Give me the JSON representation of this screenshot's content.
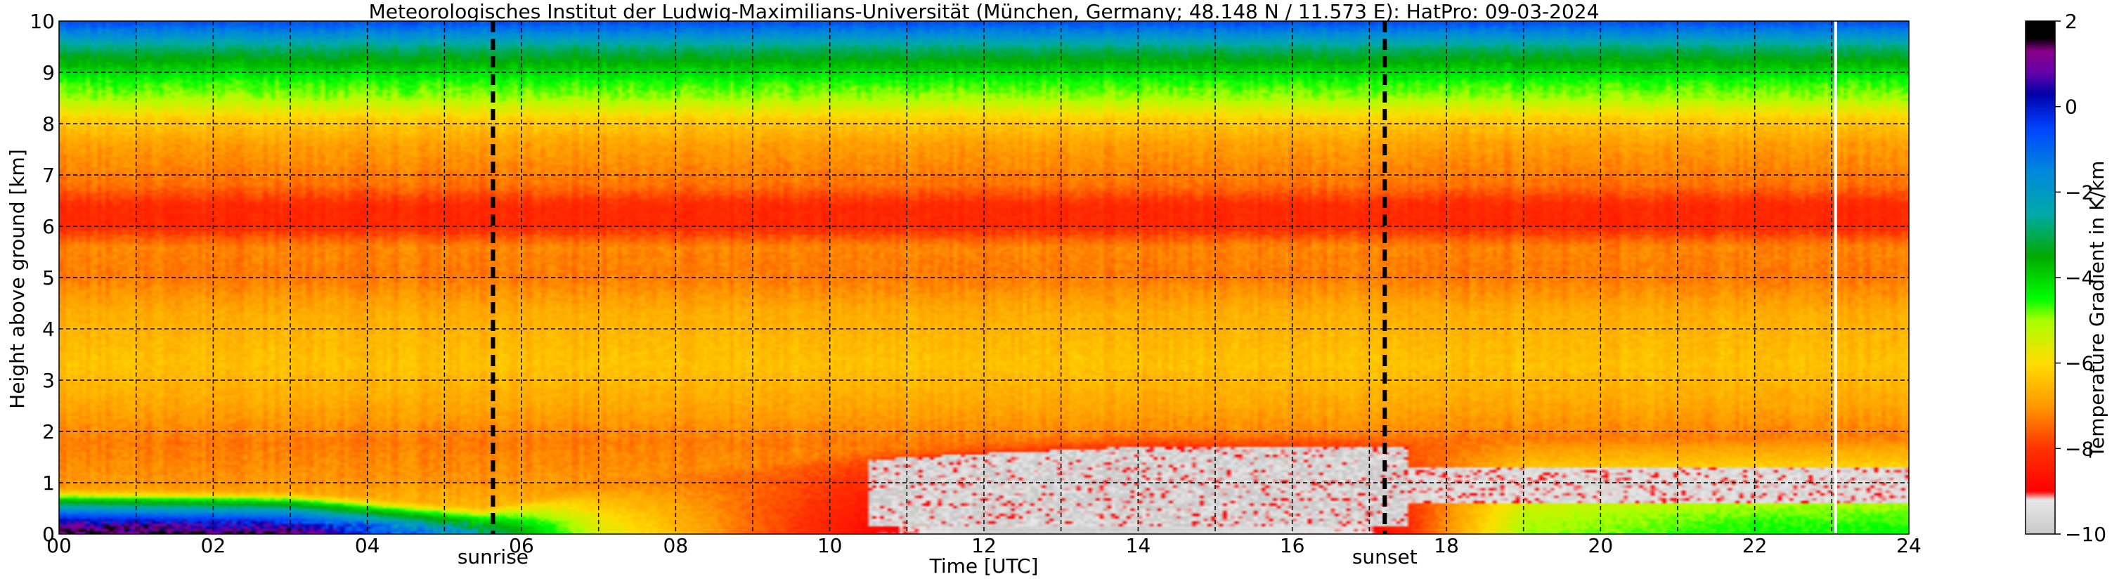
{
  "chart_data": {
    "type": "heatmap",
    "title": "Meteorologisches Institut der Ludwig-Maximilians-Universität (München, Germany; 48.148 N / 11.573 E):    HatPro: 09-03-2024",
    "xlabel": "Time [UTC]",
    "ylabel": "Height above ground [km]",
    "xlim": [
      0,
      24
    ],
    "ylim": [
      0,
      10
    ],
    "x_tick_labels": [
      "00",
      "02",
      "04",
      "06",
      "08",
      "10",
      "12",
      "14",
      "16",
      "18",
      "20",
      "22",
      "24"
    ],
    "y_tick_labels": [
      "0",
      "1",
      "2",
      "3",
      "4",
      "5",
      "6",
      "7",
      "8",
      "9",
      "10"
    ],
    "grid": true,
    "colorbar": {
      "label": "Temperature Gradient in K/km",
      "range": [
        -10,
        2
      ],
      "tick_labels": [
        "2",
        "0",
        "−2",
        "−4",
        "−6",
        "−8",
        "−10"
      ],
      "stops": [
        {
          "value": -10,
          "color": "#c8c8c8"
        },
        {
          "value": -9.2,
          "color": "#e8e8e8"
        },
        {
          "value": -9.0,
          "color": "#ff0000"
        },
        {
          "value": -8.0,
          "color": "#ff3300"
        },
        {
          "value": -7.0,
          "color": "#ff9900"
        },
        {
          "value": -6.0,
          "color": "#ffdd00"
        },
        {
          "value": -5.0,
          "color": "#aaff00"
        },
        {
          "value": -4.5,
          "color": "#00ff00"
        },
        {
          "value": -3.5,
          "color": "#00aa00"
        },
        {
          "value": -2.5,
          "color": "#00aaaa"
        },
        {
          "value": -1.5,
          "color": "#0088dd"
        },
        {
          "value": -0.5,
          "color": "#0044ff"
        },
        {
          "value": 0.3,
          "color": "#0000aa"
        },
        {
          "value": 0.8,
          "color": "#6600aa"
        },
        {
          "value": 1.3,
          "color": "#880088"
        },
        {
          "value": 1.6,
          "color": "#000000"
        },
        {
          "value": 2,
          "color": "#000000"
        }
      ]
    },
    "profile_base": [
      {
        "h": 0.0,
        "v": -6.0
      },
      {
        "h": 1.0,
        "v": -7.0
      },
      {
        "h": 1.8,
        "v": -7.3
      },
      {
        "h": 2.5,
        "v": -6.8
      },
      {
        "h": 3.3,
        "v": -6.4
      },
      {
        "h": 4.3,
        "v": -6.7
      },
      {
        "h": 5.0,
        "v": -7.3
      },
      {
        "h": 5.6,
        "v": -7.2
      },
      {
        "h": 6.0,
        "v": -8.2
      },
      {
        "h": 6.4,
        "v": -8.2
      },
      {
        "h": 6.8,
        "v": -7.4
      },
      {
        "h": 7.6,
        "v": -6.9
      },
      {
        "h": 8.1,
        "v": -6.2
      },
      {
        "h": 8.5,
        "v": -5.0
      },
      {
        "h": 8.8,
        "v": -4.6
      },
      {
        "h": 9.2,
        "v": -3.6
      },
      {
        "h": 9.5,
        "v": -2.8
      },
      {
        "h": 9.75,
        "v": -1.6
      },
      {
        "h": 10.0,
        "v": -0.6
      }
    ],
    "boundary_layer": [
      {
        "t": 0,
        "top": 0.95,
        "surface": 1.7
      },
      {
        "t": 3,
        "top": 0.9,
        "surface": 1.2
      },
      {
        "t": 5.5,
        "top": 0.6,
        "surface": -2.5
      },
      {
        "t": 7,
        "top": 1.1,
        "surface": -5.5
      },
      {
        "t": 9,
        "top": 1.4,
        "surface": -7.5
      },
      {
        "t": 10.5,
        "top": 1.7,
        "surface": -8.8
      },
      {
        "t": 12,
        "top": 1.85,
        "surface": -9.8
      },
      {
        "t": 14,
        "top": 2.0,
        "surface": -9.8
      },
      {
        "t": 17,
        "top": 2.0,
        "surface": -9.2
      },
      {
        "t": 19,
        "top": 2.0,
        "surface": -5.0
      },
      {
        "t": 22,
        "top": 2.0,
        "surface": -4.5
      },
      {
        "t": 24,
        "top": 2.0,
        "surface": -4.5
      }
    ],
    "annotations": [
      {
        "label": "sunrise",
        "x": 5.63
      },
      {
        "label": "sunset",
        "x": 17.2
      }
    ],
    "data_gap": {
      "x": 23.05
    }
  }
}
